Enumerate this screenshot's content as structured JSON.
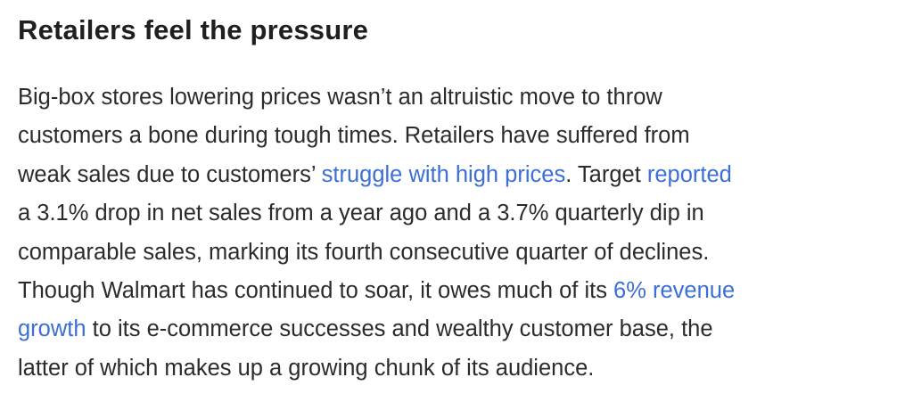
{
  "article": {
    "heading": "Retailers feel the pressure",
    "paragraph": {
      "t1": "Big-box stores lowering prices wasn’t an altruistic move to throw",
      "t2": "customers a bone during tough times. Retailers have suffered from",
      "t3": "weak sales due to customers’ ",
      "link_struggle": "struggle with high prices",
      "t4": ". Target ",
      "link_reported": "reported",
      "t5": "a 3.1% drop in net sales from a year ago and a 3.7% quarterly dip in",
      "t6": "comparable sales, marking its fourth consecutive quarter of declines.",
      "t7": "Though Walmart has continued to soar, it owes much of its ",
      "link_revenue_1": "6% revenue",
      "link_revenue_2": "growth",
      "t8": " to its e-commerce successes and wealthy customer base, the",
      "t9": "latter of which makes up a growing chunk of its audience."
    },
    "link_color": "#3b6fd6",
    "text_color": "#2b2b2b"
  }
}
